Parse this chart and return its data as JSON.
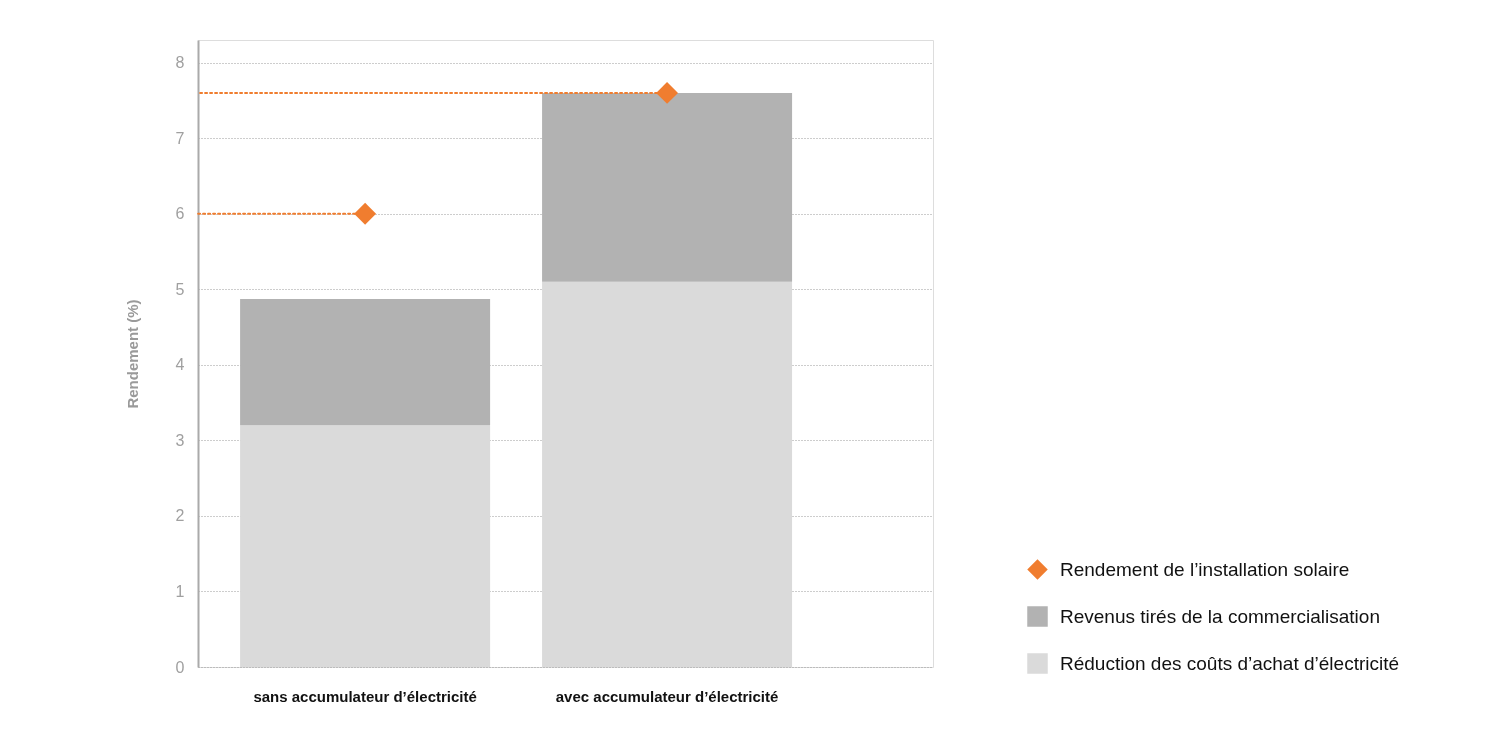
{
  "chart_data": {
    "type": "bar",
    "stacked": true,
    "categories": [
      "sans accumulateur d’électricité",
      "avec accumulateur d’électricité"
    ],
    "ylabel": "Rendement (%)",
    "ylim": [
      0,
      8.3
    ],
    "yticks": [
      0,
      1,
      2,
      3,
      4,
      5,
      6,
      7,
      8
    ],
    "grid": "y",
    "legend": "bottom right",
    "series": [
      {
        "name": "Réduction des coûts d’achat d’électricité",
        "color": "#dadada",
        "values": [
          3.2,
          5.1
        ]
      },
      {
        "name": "Revenus tirés de la commercialisation",
        "color": "#b2b2b2",
        "values": [
          1.67,
          2.5
        ]
      },
      {
        "type": "scatter",
        "name": "Rendement de l’installation solaire",
        "color": "#f07d2f",
        "marker": "diamond",
        "values": [
          6,
          7.6
        ]
      }
    ],
    "ref_lines": [
      {
        "axis": "y",
        "value": 6,
        "color": "#f07d2f",
        "line_style": "dotted"
      },
      {
        "axis": "y",
        "value": 7.6,
        "color": "#f07d2f",
        "line_style": "dotted"
      }
    ]
  }
}
